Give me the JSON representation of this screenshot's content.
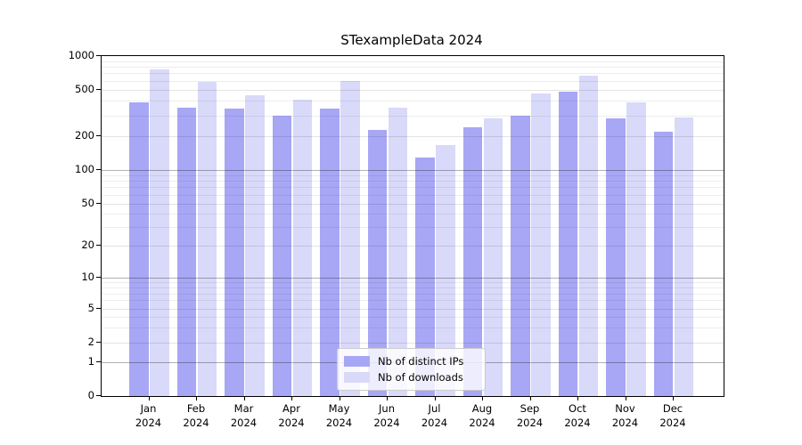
{
  "title": "STexampleData 2024",
  "chart_data": {
    "type": "bar",
    "title": "STexampleData 2024",
    "categories": [
      "Jan",
      "Feb",
      "Mar",
      "Apr",
      "May",
      "Jun",
      "Jul",
      "Aug",
      "Sep",
      "Oct",
      "Nov",
      "Dec"
    ],
    "x_tick_year": "2024",
    "series": [
      {
        "name": "Nb of distinct IPs",
        "color": "#a7a7f5",
        "values": [
          385,
          350,
          345,
          295,
          345,
          225,
          128,
          235,
          300,
          480,
          280,
          215
        ]
      },
      {
        "name": "Nb of downloads",
        "color": "#d9d9f9",
        "values": [
          760,
          590,
          450,
          410,
          600,
          350,
          165,
          280,
          460,
          670,
          385,
          285
        ]
      }
    ],
    "y_axis": {
      "scale": "log-above-1-linear-below",
      "tick_values": [
        0,
        1,
        2,
        5,
        10,
        20,
        50,
        100,
        200,
        500,
        1000
      ],
      "tick_labels": [
        "0",
        "1",
        "2",
        "5",
        "10",
        "20",
        "50",
        "100",
        "200",
        "500",
        "1000"
      ],
      "ylim": [
        0,
        1000
      ]
    },
    "legend": {
      "position": "lower center",
      "items": [
        "Nb of distinct IPs",
        "Nb of downloads"
      ]
    },
    "grid": "horizontal major + log minor lines"
  },
  "colors": {
    "grid_major": "rgba(0,0,0,0.30)",
    "grid_mid": "rgba(0,0,0,0.11)",
    "grid_minor": "rgba(0,0,0,0.07)"
  }
}
